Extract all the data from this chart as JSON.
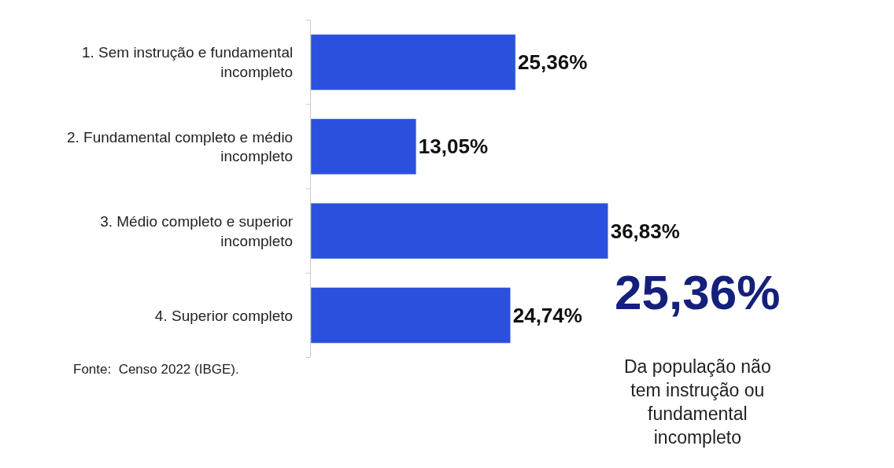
{
  "chart_data": {
    "type": "bar",
    "orientation": "horizontal",
    "categories": [
      "1. Sem instrução e fundamental incompleto",
      "2. Fundamental completo e médio incompleto",
      "3. Médio completo e superior incompleto",
      "4. Superior completo"
    ],
    "values": [
      25.36,
      13.05,
      36.83,
      24.74
    ],
    "value_labels": [
      "25,36%",
      "13,05%",
      "36,83%",
      "24,74%"
    ],
    "color": "#2b50dd",
    "legend": false,
    "annotations": [
      "Fonte:  Censo 2022 (IBGE).",
      "25,36%",
      "Da população não tem instrução ou fundamental incompleto"
    ]
  }
}
